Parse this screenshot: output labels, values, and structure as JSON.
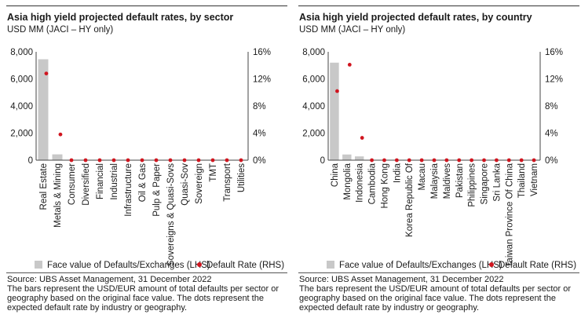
{
  "colors": {
    "bar": "#c8c8c8",
    "dot": "#d0151f",
    "axis": "#444444",
    "text": "#1a1a1a"
  },
  "legend": {
    "bar_label": "Face value of Defaults/Exchanges (LHS)",
    "dot_label": "Default Rate (RHS)"
  },
  "chart_data": [
    {
      "id": "sector",
      "type": "bar",
      "title": "Asia high yield projected default rates, by sector",
      "subtitle": "USD MM (JACI – HY only)",
      "y_left": {
        "min": 0,
        "max": 8000,
        "ticks": [
          "0",
          "2,000",
          "4,000",
          "6,000",
          "8,000"
        ]
      },
      "y_right": {
        "min": 0,
        "max": 16,
        "ticks": [
          "0%",
          "4%",
          "8%",
          "12%",
          "16%"
        ]
      },
      "categories": [
        "Real Estate",
        "Metals & Mining",
        "Consumer",
        "Diversified",
        "Financial",
        "Industrial",
        "Infrastructure",
        "Oil & Gas",
        "Pulp & Paper",
        "Sovereigns & Quasi-Sovs",
        "Quasi-Sov",
        "Sovereign",
        "TMT",
        "Transport",
        "Utilities"
      ],
      "series": [
        {
          "name": "Face value of Defaults/Exchanges (LHS)",
          "kind": "bar",
          "axis": "left",
          "values": [
            7450,
            430,
            0,
            0,
            0,
            0,
            0,
            0,
            0,
            0,
            0,
            0,
            0,
            0,
            0
          ]
        },
        {
          "name": "Default Rate (RHS)",
          "kind": "dot",
          "axis": "right",
          "values": [
            12.8,
            3.8,
            0,
            0,
            0,
            0,
            0,
            0,
            0,
            0,
            0,
            0,
            0,
            0,
            0
          ]
        }
      ],
      "legend": "bottom",
      "source": "Source: UBS Asset Management, 31 December 2022",
      "note": "The bars represent the USD/EUR amount of total defaults per sector or geography based on the original face value. The dots represent the expected default rate by industry or geography."
    },
    {
      "id": "country",
      "type": "bar",
      "title": "Asia high yield projected default rates, by country",
      "subtitle": "USD MM (JACI – HY only)",
      "y_left": {
        "min": 0,
        "max": 8000,
        "ticks": [
          "0",
          "2,000",
          "4,000",
          "6,000",
          "8,000"
        ]
      },
      "y_right": {
        "min": 0,
        "max": 16,
        "ticks": [
          "0%",
          "4%",
          "8%",
          "12%",
          "16%"
        ]
      },
      "categories": [
        "China",
        "Mongolia",
        "Indonesia",
        "Cambodia",
        "Hong Kong",
        "India",
        "Korea Republic Of",
        "Macau",
        "Malaysia",
        "Maldives",
        "Pakistan",
        "Philippines",
        "Singapore",
        "Sri Lanka",
        "Taiwan Province Of China",
        "Thailand",
        "Vietnam"
      ],
      "series": [
        {
          "name": "Face value of Defaults/Exchanges (LHS)",
          "kind": "bar",
          "axis": "left",
          "values": [
            7200,
            420,
            280,
            0,
            0,
            0,
            0,
            0,
            0,
            0,
            0,
            0,
            0,
            0,
            0,
            0,
            0
          ]
        },
        {
          "name": "Default Rate (RHS)",
          "kind": "dot",
          "axis": "right",
          "values": [
            10.2,
            14.1,
            3.3,
            0,
            0,
            0,
            0,
            0,
            0,
            0,
            0,
            0,
            0,
            0,
            0,
            0,
            0
          ]
        }
      ],
      "legend": "bottom",
      "source": "Source: UBS Asset Management, 31 December 2022",
      "note": "The bars represent the USD/EUR amount of total defaults per sector or geography based on the original face value. The dots represent the expected default rate by industry or geography."
    }
  ]
}
